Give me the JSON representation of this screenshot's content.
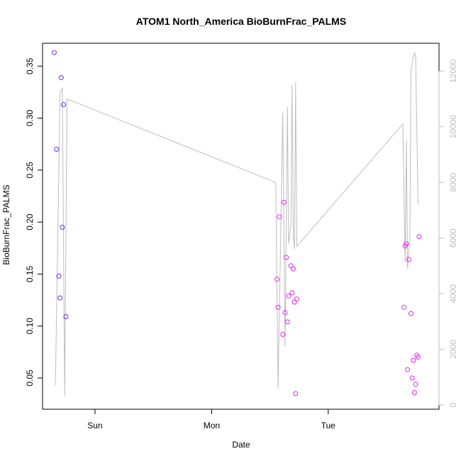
{
  "chart_data": {
    "type": "scatter",
    "title": "ATOM1 North_America BioBurnFrac_PALMS",
    "xlabel": "Date",
    "ylabel": "BioBurnFrac_PALMS",
    "x_unit": "days",
    "x_ticks": [
      {
        "label": "Sun",
        "value": 1
      },
      {
        "label": "Mon",
        "value": 2
      },
      {
        "label": "Tue",
        "value": 3
      }
    ],
    "xlim": [
      0.55,
      3.95
    ],
    "ylim": [
      0.02,
      0.372
    ],
    "y_ticks": [
      0.05,
      0.1,
      0.15,
      0.2,
      0.25,
      0.3,
      0.35
    ],
    "y2_ticks": [
      0,
      2000,
      4000,
      6000,
      8000,
      10000,
      12000
    ],
    "y2_lim": [
      -150,
      13000
    ],
    "grid": false,
    "legend": "none",
    "colors": {
      "axis": "#000000",
      "line": "#bdbdbd",
      "right_axis": "#bdbdbd",
      "points_early": "#6a2bf5",
      "points_late": "#e81ef0"
    },
    "series": [
      {
        "kind": "points",
        "points": [
          {
            "x": 0.65,
            "y": 0.363,
            "c": "#6a2bf5"
          },
          {
            "x": 0.67,
            "y": 0.27,
            "c": "#6a2bf5"
          },
          {
            "x": 0.69,
            "y": 0.148,
            "c": "#6a2bf5"
          },
          {
            "x": 0.7,
            "y": 0.127,
            "c": "#6a2bf5"
          },
          {
            "x": 0.71,
            "y": 0.339,
            "c": "#6a2bf5"
          },
          {
            "x": 0.72,
            "y": 0.195,
            "c": "#6a2bf5"
          },
          {
            "x": 0.73,
            "y": 0.313,
            "c": "#6a2bf5"
          },
          {
            "x": 0.75,
            "y": 0.109,
            "c": "#6a2bf5"
          },
          {
            "x": 2.56,
            "y": 0.145,
            "c": "#e81ef0"
          },
          {
            "x": 2.57,
            "y": 0.118,
            "c": "#e81ef0"
          },
          {
            "x": 2.58,
            "y": 0.205,
            "c": "#e81ef0"
          },
          {
            "x": 2.61,
            "y": 0.092,
            "c": "#e81ef0"
          },
          {
            "x": 2.62,
            "y": 0.219,
            "c": "#e81ef0"
          },
          {
            "x": 2.63,
            "y": 0.113,
            "c": "#e81ef0"
          },
          {
            "x": 2.64,
            "y": 0.166,
            "c": "#e81ef0"
          },
          {
            "x": 2.65,
            "y": 0.104,
            "c": "#e81ef0"
          },
          {
            "x": 2.66,
            "y": 0.129,
            "c": "#e81ef0"
          },
          {
            "x": 2.68,
            "y": 0.158,
            "c": "#e81ef0"
          },
          {
            "x": 2.69,
            "y": 0.132,
            "c": "#e81ef0"
          },
          {
            "x": 2.7,
            "y": 0.155,
            "c": "#e81ef0"
          },
          {
            "x": 2.71,
            "y": 0.123,
            "c": "#e81ef0"
          },
          {
            "x": 2.72,
            "y": 0.035,
            "c": "#e81ef0"
          },
          {
            "x": 2.73,
            "y": 0.126,
            "c": "#e81ef0"
          },
          {
            "x": 3.65,
            "y": 0.118,
            "c": "#e81ef0"
          },
          {
            "x": 3.66,
            "y": 0.177,
            "c": "#e81ef0"
          },
          {
            "x": 3.67,
            "y": 0.179,
            "c": "#e81ef0"
          },
          {
            "x": 3.68,
            "y": 0.058,
            "c": "#e81ef0"
          },
          {
            "x": 3.69,
            "y": 0.164,
            "c": "#e81ef0"
          },
          {
            "x": 3.71,
            "y": 0.112,
            "c": "#e81ef0"
          },
          {
            "x": 3.72,
            "y": 0.05,
            "c": "#e81ef0"
          },
          {
            "x": 3.73,
            "y": 0.067,
            "c": "#e81ef0"
          },
          {
            "x": 3.74,
            "y": 0.036,
            "c": "#e81ef0"
          },
          {
            "x": 3.75,
            "y": 0.044,
            "c": "#e81ef0"
          },
          {
            "x": 3.76,
            "y": 0.072,
            "c": "#e81ef0"
          },
          {
            "x": 3.77,
            "y": 0.07,
            "c": "#e81ef0"
          },
          {
            "x": 3.78,
            "y": 0.186,
            "c": "#e81ef0"
          }
        ]
      },
      {
        "kind": "line",
        "axis": "right",
        "points": [
          {
            "x": 0.66,
            "y": 700
          },
          {
            "x": 0.7,
            "y": 11200
          },
          {
            "x": 0.72,
            "y": 11400
          },
          {
            "x": 0.74,
            "y": 300
          },
          {
            "x": 0.76,
            "y": 11000
          },
          {
            "x": 2.55,
            "y": 8000
          },
          {
            "x": 2.57,
            "y": 600
          },
          {
            "x": 2.59,
            "y": 5500
          },
          {
            "x": 2.61,
            "y": 10500
          },
          {
            "x": 2.63,
            "y": 2100
          },
          {
            "x": 2.65,
            "y": 10700
          },
          {
            "x": 2.66,
            "y": 5800
          },
          {
            "x": 2.68,
            "y": 6500
          },
          {
            "x": 2.69,
            "y": 11500
          },
          {
            "x": 2.7,
            "y": 6200
          },
          {
            "x": 2.71,
            "y": 5600
          },
          {
            "x": 2.72,
            "y": 11600
          },
          {
            "x": 2.73,
            "y": 5700
          },
          {
            "x": 3.64,
            "y": 10100
          },
          {
            "x": 3.66,
            "y": 5100
          },
          {
            "x": 3.67,
            "y": 9500
          },
          {
            "x": 3.68,
            "y": 4900
          },
          {
            "x": 3.7,
            "y": 6000
          },
          {
            "x": 3.71,
            "y": 12000
          },
          {
            "x": 3.73,
            "y": 12500
          },
          {
            "x": 3.74,
            "y": 12650
          },
          {
            "x": 3.75,
            "y": 12500
          },
          {
            "x": 3.77,
            "y": 7200
          }
        ]
      }
    ]
  }
}
